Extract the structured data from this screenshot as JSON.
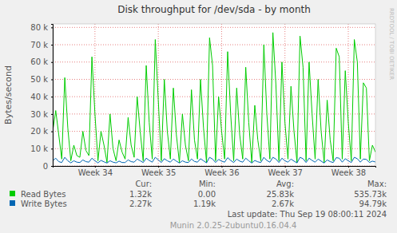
{
  "chart_data": {
    "type": "line",
    "title": "Disk throughput for /dev/sda - by month",
    "y_label": "Bytes/second",
    "watermark": "RRDTOOL / TOBI OETIKER",
    "stats_header": [
      "Cur:",
      "Min:",
      "Avg:",
      "Max:"
    ],
    "last_update": "Last update:  Thu Sep 19 08:00:11 2024",
    "footer": "Munin 2.0.25-2ubuntu0.16.04.4",
    "grid": true,
    "ylim": [
      0,
      82000
    ],
    "yticks": [
      0,
      {
        "value": 10000,
        "label": "10 k"
      },
      {
        "value": 20000,
        "label": "20 k"
      },
      {
        "value": 30000,
        "label": "30 k"
      },
      {
        "value": 40000,
        "label": "40 k"
      },
      {
        "value": 50000,
        "label": "50 k"
      },
      {
        "value": 60000,
        "label": "60 k"
      },
      {
        "value": 70000,
        "label": "70 k"
      },
      {
        "value": 80000,
        "label": "80 k"
      }
    ],
    "categories": [
      null,
      null,
      null,
      null,
      null,
      null,
      null,
      null,
      null,
      null,
      null,
      null,
      null,
      null,
      "Week 34",
      null,
      null,
      null,
      null,
      null,
      null,
      null,
      null,
      null,
      null,
      null,
      null,
      null,
      null,
      null,
      null,
      null,
      null,
      null,
      null,
      "Week 35",
      null,
      null,
      null,
      null,
      null,
      null,
      null,
      null,
      null,
      null,
      null,
      null,
      null,
      null,
      null,
      null,
      null,
      null,
      null,
      null,
      "Week 36",
      null,
      null,
      null,
      null,
      null,
      null,
      null,
      null,
      null,
      null,
      null,
      null,
      null,
      null,
      null,
      null,
      null,
      null,
      null,
      null,
      "Week 37",
      null,
      null,
      null,
      null,
      null,
      null,
      null,
      null,
      null,
      null,
      null,
      null,
      null,
      null,
      null,
      null,
      null,
      null,
      null,
      null,
      "Week 38",
      null,
      null,
      null,
      null,
      null,
      null,
      null,
      null,
      null
    ],
    "series": [
      {
        "name": "Read Bytes",
        "color": "#00cc00",
        "stats": [
          "1.32k",
          "0.00",
          "25.83k",
          "535.73k"
        ],
        "values": [
          20000,
          32000,
          18000,
          4000,
          51000,
          22000,
          3000,
          12000,
          6000,
          5000,
          20000,
          9000,
          6000,
          63000,
          30000,
          3000,
          20000,
          12000,
          2000,
          30000,
          10000,
          3000,
          15000,
          8000,
          4000,
          28000,
          12000,
          5000,
          40000,
          20000,
          3000,
          58000,
          25000,
          4000,
          73000,
          38000,
          3000,
          50000,
          20000,
          4000,
          45000,
          18000,
          2000,
          30000,
          12000,
          3000,
          44000,
          15000,
          4000,
          50000,
          22000,
          2000,
          74000,
          58000,
          3000,
          40000,
          20000,
          4000,
          66000,
          30000,
          3000,
          45000,
          18000,
          4000,
          57000,
          25000,
          2000,
          35000,
          15000,
          3000,
          70000,
          30000,
          4000,
          77000,
          47000,
          3000,
          60000,
          25000,
          4000,
          46000,
          20000,
          2000,
          75000,
          57000,
          3000,
          60000,
          30000,
          4000,
          50000,
          20000,
          2000,
          38000,
          15000,
          3000,
          68000,
          63000,
          4000,
          55000,
          25000,
          3000,
          73000,
          60000,
          4000,
          48000,
          45000,
          3000,
          12000,
          8000
        ]
      },
      {
        "name": "Write Bytes",
        "color": "#0066b3",
        "stats": [
          "2.27k",
          "1.19k",
          "2.67k",
          "94.79k"
        ],
        "values": [
          3000,
          4500,
          2500,
          2000,
          5000,
          3000,
          1800,
          3000,
          2200,
          2000,
          3500,
          2500,
          2200,
          4500,
          3000,
          1800,
          3200,
          2400,
          1700,
          3000,
          2200,
          1800,
          2800,
          2000,
          2000,
          3500,
          2500,
          2200,
          4000,
          3000,
          2000,
          4500,
          3200,
          2200,
          5000,
          3500,
          2000,
          4200,
          3000,
          2200,
          4000,
          2800,
          1700,
          3000,
          2200,
          2000,
          4000,
          2600,
          2200,
          4200,
          3000,
          1800,
          5000,
          4000,
          2000,
          3800,
          2800,
          2200,
          4800,
          3200,
          2000,
          4000,
          2800,
          2200,
          4500,
          3000,
          1700,
          3200,
          2400,
          2000,
          5000,
          3200,
          2200,
          5000,
          4000,
          2000,
          4500,
          3000,
          2200,
          4000,
          2800,
          1800,
          5000,
          4200,
          2000,
          4500,
          3200,
          2200,
          4000,
          2800,
          1700,
          3500,
          2500,
          2000,
          4800,
          4500,
          2200,
          4200,
          3000,
          2000,
          5000,
          4200,
          2200,
          4000,
          3800,
          2000,
          2800,
          2300
        ]
      }
    ]
  }
}
